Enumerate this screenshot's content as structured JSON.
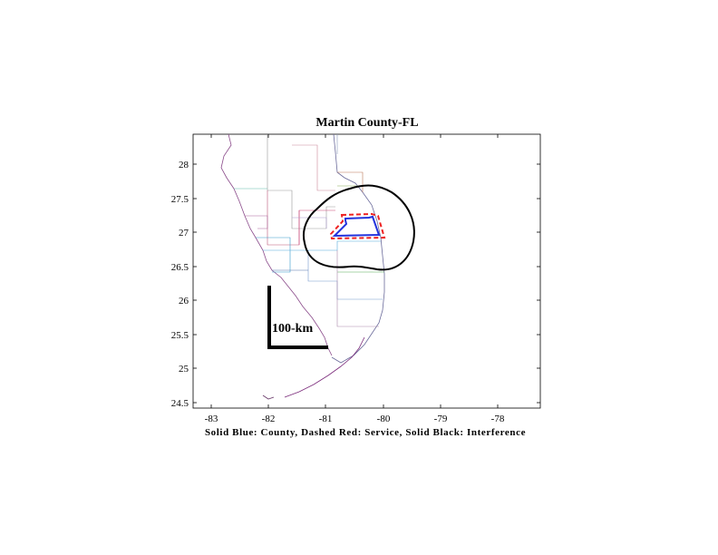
{
  "map": {
    "title": "Martin County-FL",
    "caption": "Solid Blue: County, Dashed Red: Service, Solid Black: Interference",
    "scale_label": "100-km",
    "x_ticks": [
      "-83",
      "-82",
      "-81",
      "-80",
      "-79",
      "-78"
    ],
    "y_ticks": [
      "28",
      "27.5",
      "27",
      "26.5",
      "26",
      "25.5",
      "25",
      "24.5"
    ],
    "colors": {
      "county": "#2233dd",
      "service": "#ee2222",
      "interference": "#000000"
    }
  }
}
